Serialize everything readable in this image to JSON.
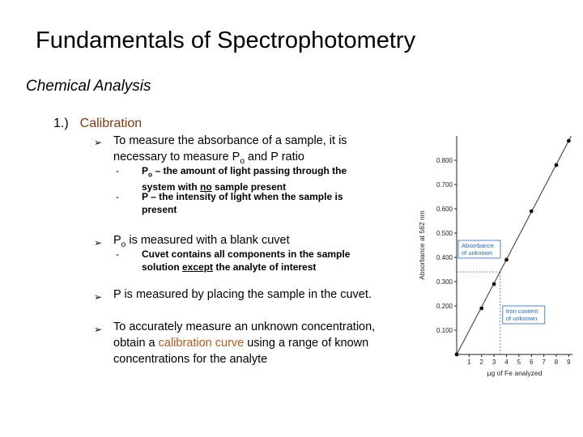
{
  "slide": {
    "title": "Fundamentals of Spectrophotometry",
    "subtitle": "Chemical Analysis",
    "section_number": "1.)",
    "section_label": "Calibration"
  },
  "bullets": {
    "b1_line1": "To measure the absorbance of a sample, it is",
    "b1_line2_pre": "necessary to measure P",
    "b1_line2_sub": "o",
    "b1_line2_post": " and P ratio",
    "b1_s1_pre": "P",
    "b1_s1_sub": "o",
    "b1_s1_line1_post": " – the amount of light passing through the",
    "b1_s1_line2_pre": "system with ",
    "b1_s1_line2_u": "no",
    "b1_s1_line2_post": " sample present",
    "b1_s2_line1": "P – the intensity of light when the sample is",
    "b1_s2_line2": "present",
    "b2_pre": "P",
    "b2_sub": "o",
    "b2_post": " is measured with a blank cuvet",
    "b2_s1_line1": "Cuvet contains all components in the sample",
    "b2_s1_line2_pre": "solution ",
    "b2_s1_line2_u": "except",
    "b2_s1_line2_post": " the analyte of interest",
    "b3": "P is measured by placing the sample in the cuvet.",
    "b4_line1": "To accurately measure an unknown concentration,",
    "b4_line2_pre": "obtain a ",
    "b4_line2_accent": "calibration curve",
    "b4_line2_post": " using a range of known",
    "b4_line3": "concentrations for the analyte",
    "arrow_glyph": "➢",
    "dash_glyph": "-"
  },
  "chart_data": {
    "type": "scatter",
    "title": "",
    "xlabel": "µg of Fe analyzed",
    "ylabel": "Absorbance at 562 nm",
    "xlim": [
      0,
      9.3
    ],
    "ylim": [
      0,
      0.9
    ],
    "x_ticks": [
      "1",
      "2",
      "3",
      "4",
      "5",
      "6",
      "7",
      "8",
      "9"
    ],
    "y_ticks": [
      "0.100",
      "0.200",
      "0.300",
      "0.400",
      "0.500",
      "0.600",
      "0.700",
      "0.800"
    ],
    "series": [
      {
        "x": [
          0,
          2.0,
          3.0,
          4.0,
          6.0,
          8.0,
          9.0
        ],
        "y": [
          0.0,
          0.19,
          0.29,
          0.39,
          0.59,
          0.78,
          0.88
        ]
      }
    ],
    "fit_line": {
      "x": [
        0,
        9.2
      ],
      "y": [
        0,
        0.9
      ]
    },
    "unknown": {
      "x": 3.5,
      "y": 0.34
    },
    "annotations": {
      "absorbance_line1": "Absorbance",
      "absorbance_line2": "of unknown",
      "iron_line1": "Iron content",
      "iron_line2": "of unknown"
    },
    "colors": {
      "line": "#333333",
      "points": "#111111",
      "annotation": "#2a67b0"
    }
  }
}
